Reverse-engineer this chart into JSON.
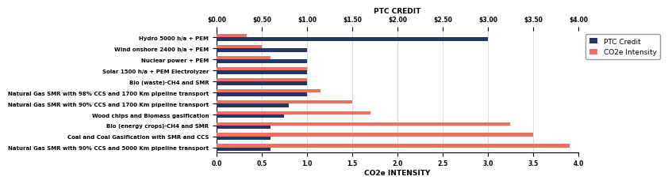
{
  "categories": [
    "Hydro 5000 h/a + PEM",
    "Wind onshore 2400 h/a + PEM",
    "Nuclear power + PEM",
    "Solar 1500 h/a + PEM Electrolyzer",
    "Bio (waste)-CH4 and SMR",
    "Natural Gas SMR with 98% CCS and 1700 Km pipeline transport",
    "Natural Gas SMR with 90% CCS and 1700 Km pipeline transport",
    "Wood chips and Biomass gasification",
    "Bio (energy crops)-CH4 and SMR",
    "Coal and Coal Gasification with SMR and CCS",
    "Natural Gas SMR with 90% CCS and 5000 Km pipeline transport"
  ],
  "ptc_credit": [
    3.0,
    1.0,
    1.0,
    1.0,
    1.0,
    1.0,
    0.8,
    0.75,
    0.6,
    0.6,
    0.6
  ],
  "co2e_intensity": [
    0.33,
    0.5,
    0.6,
    1.0,
    1.0,
    1.15,
    1.5,
    1.7,
    3.25,
    3.5,
    3.9
  ],
  "ptc_color": "#1f3864",
  "co2e_color": "#f07060",
  "title_top": "PTC CREDIT",
  "title_bottom": "CO2e INTENSITY",
  "xtop_labels": [
    "$0.00",
    "$0.50",
    "$1.00",
    "$1.50",
    "$2.00",
    "$2.50",
    "$3.00",
    "$3.50",
    "$4.00"
  ],
  "xbot_labels": [
    "0.0",
    "0.5",
    "1.0",
    "1.5",
    "2.0",
    "2.5",
    "3.0",
    "3.5",
    "4.0"
  ],
  "xticks": [
    0.0,
    0.5,
    1.0,
    1.5,
    2.0,
    2.5,
    3.0,
    3.5,
    4.0
  ],
  "xlim": [
    0.0,
    4.0
  ],
  "legend_labels": [
    "PTC Credit",
    "CO2e Intensity"
  ],
  "bar_height": 0.32,
  "label_fontsize": 5.0,
  "tick_fontsize": 5.5,
  "title_fontsize": 6.5,
  "legend_fontsize": 6.5,
  "bg_color": "#f0f0e8"
}
